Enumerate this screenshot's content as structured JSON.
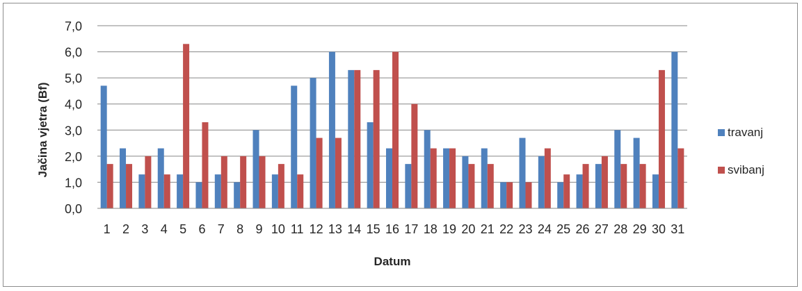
{
  "chart_data": {
    "type": "bar",
    "title": "",
    "xlabel": "Datum",
    "ylabel": "Jačina vjetra (Bf)",
    "ylim": [
      0,
      7
    ],
    "yticks": [
      "0,0",
      "1,0",
      "2,0",
      "3,0",
      "4,0",
      "5,0",
      "6,0",
      "7,0"
    ],
    "grid": true,
    "legend_position": "right",
    "categories": [
      "1",
      "2",
      "3",
      "4",
      "5",
      "6",
      "7",
      "8",
      "9",
      "10",
      "11",
      "12",
      "13",
      "14",
      "15",
      "16",
      "17",
      "18",
      "19",
      "20",
      "21",
      "22",
      "23",
      "24",
      "25",
      "26",
      "27",
      "28",
      "29",
      "30",
      "31"
    ],
    "series": [
      {
        "name": "travanj",
        "color": "#4f81bd",
        "values": [
          4.7,
          2.3,
          1.3,
          2.3,
          1.3,
          1.0,
          1.3,
          1.0,
          3.0,
          1.3,
          4.7,
          5.0,
          6.0,
          5.3,
          3.3,
          2.3,
          1.7,
          3.0,
          2.3,
          2.0,
          2.3,
          1.0,
          2.7,
          2.0,
          1.0,
          1.3,
          1.7,
          3.0,
          2.7,
          1.3,
          6.0
        ]
      },
      {
        "name": "svibanj",
        "color": "#c0504d",
        "values": [
          1.7,
          1.7,
          2.0,
          1.3,
          6.3,
          3.3,
          2.0,
          2.0,
          2.0,
          1.7,
          1.3,
          2.7,
          2.7,
          5.3,
          5.3,
          6.0,
          4.0,
          2.3,
          2.3,
          1.7,
          1.7,
          1.0,
          1.0,
          2.3,
          1.3,
          1.7,
          2.0,
          1.7,
          1.7,
          5.3,
          2.3
        ]
      }
    ]
  }
}
